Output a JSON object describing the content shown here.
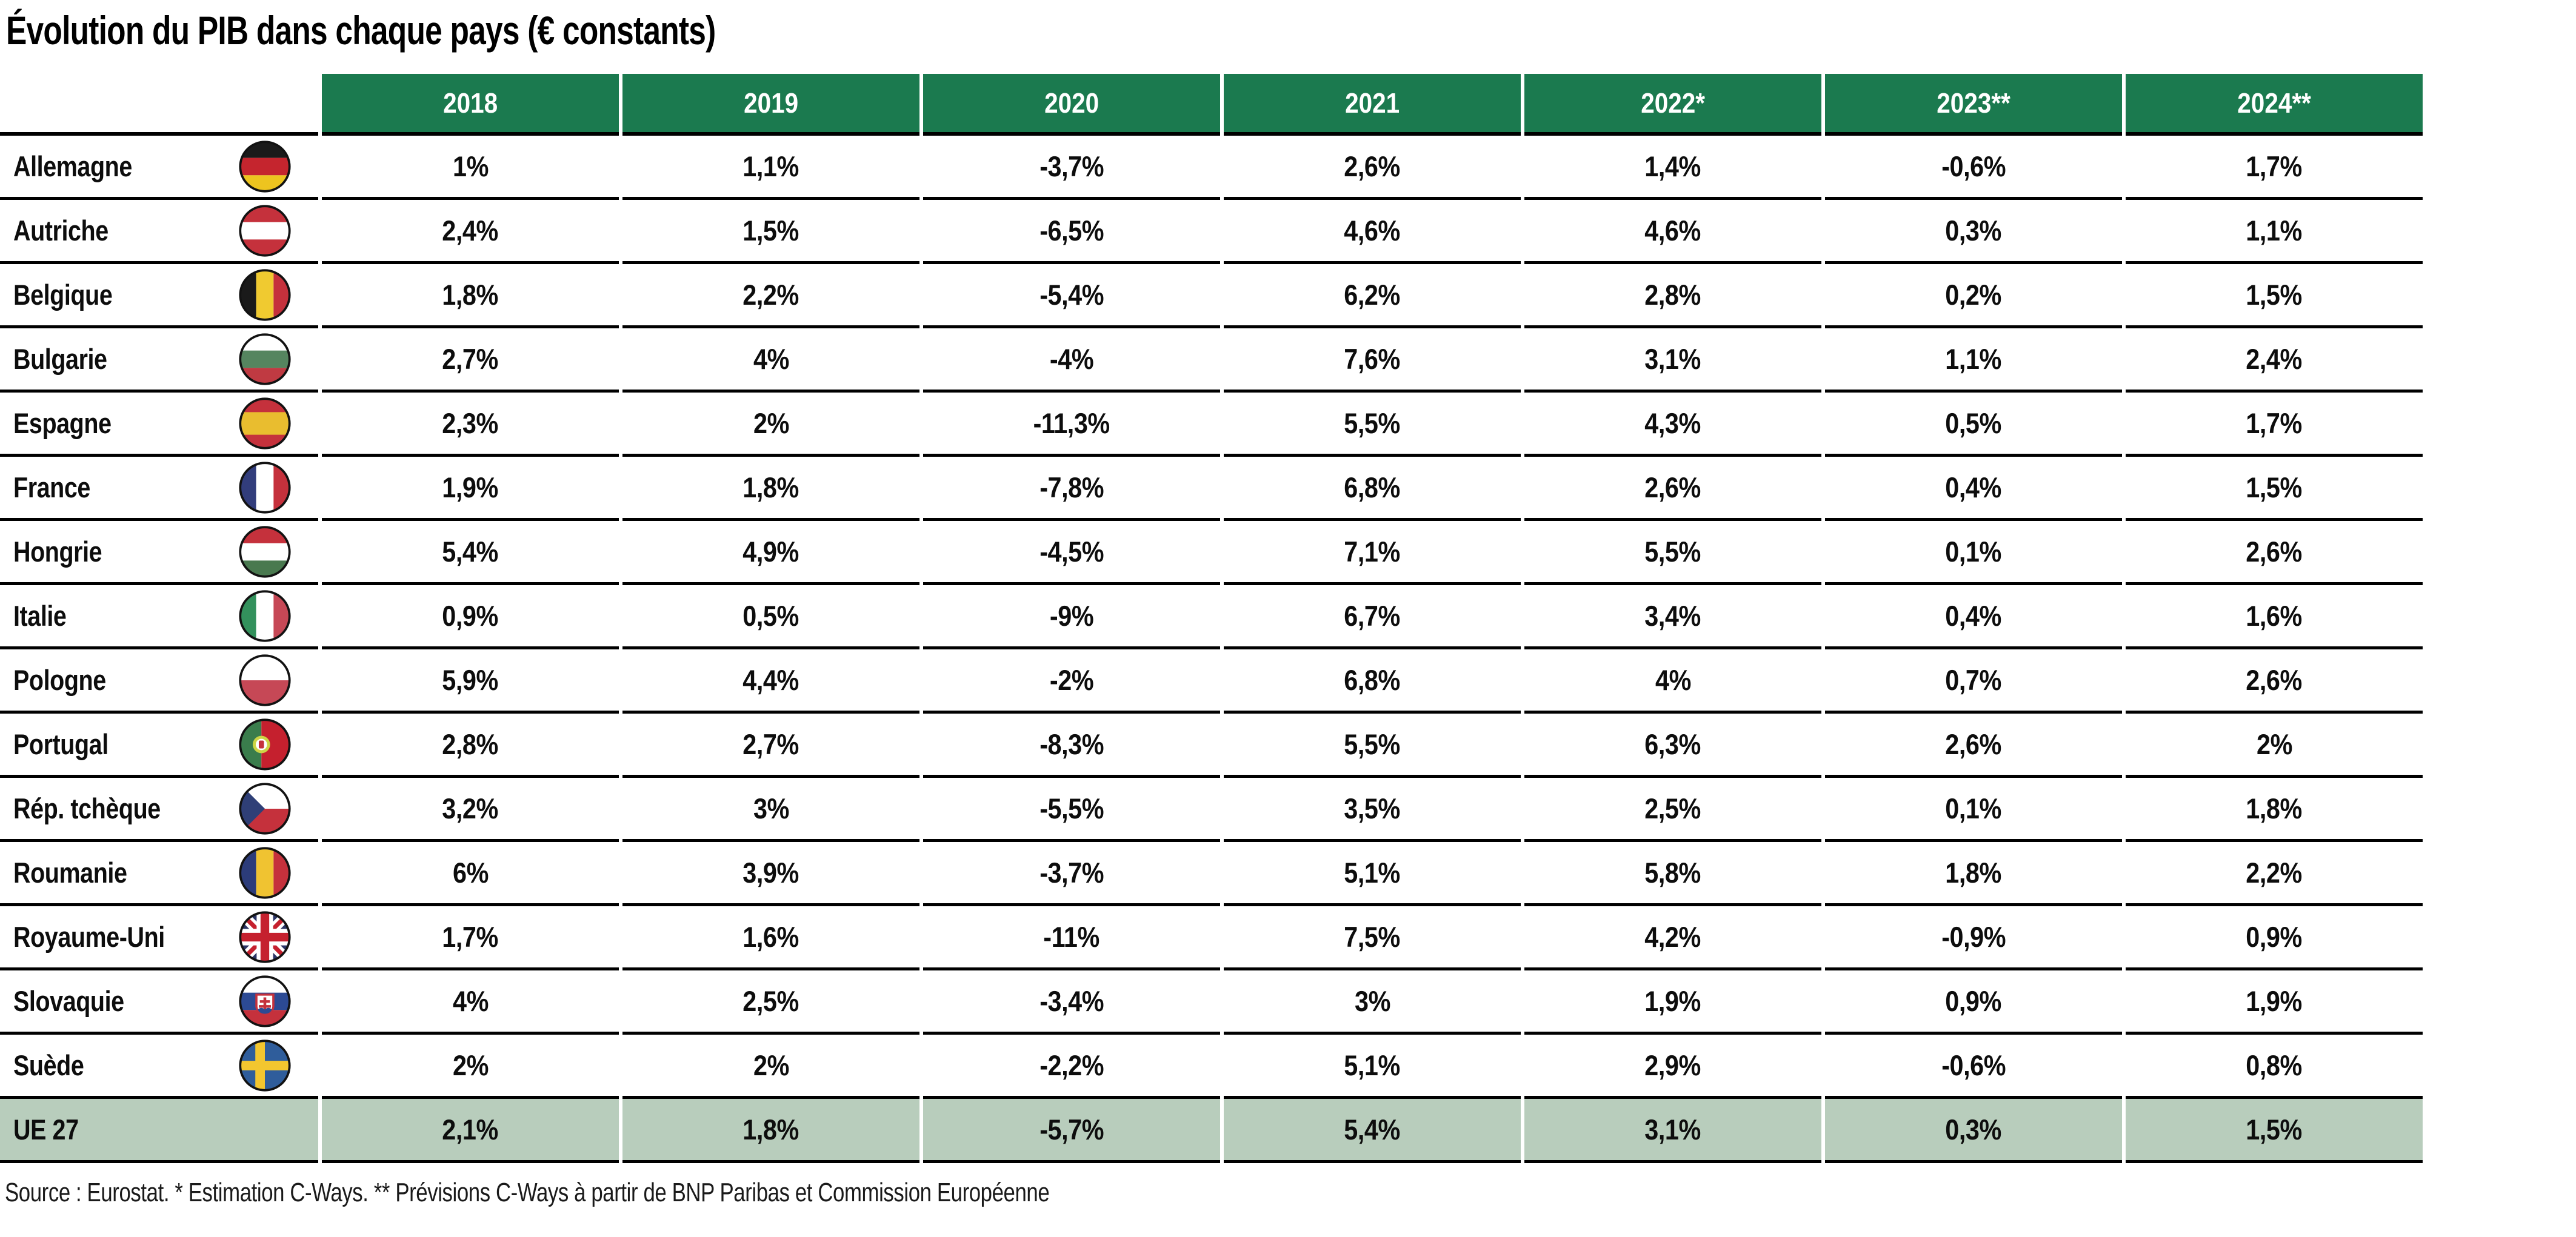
{
  "title": "Évolution du PIB dans chaque pays (€ constants)",
  "table": {
    "year_headers": [
      "2018",
      "2019",
      "2020",
      "2021",
      "2022*",
      "2023**",
      "2024**"
    ],
    "rows": [
      {
        "country": "Allemagne",
        "flag": "flag-germany",
        "code": "de",
        "values": [
          "1%",
          "1,1%",
          "-3,7%",
          "2,6%",
          "1,4%",
          "-0,6%",
          "1,7%"
        ]
      },
      {
        "country": "Autriche",
        "flag": "flag-austria",
        "code": "at",
        "values": [
          "2,4%",
          "1,5%",
          "-6,5%",
          "4,6%",
          "4,6%",
          "0,3%",
          "1,1%"
        ]
      },
      {
        "country": "Belgique",
        "flag": "flag-belgium",
        "code": "be",
        "values": [
          "1,8%",
          "2,2%",
          "-5,4%",
          "6,2%",
          "2,8%",
          "0,2%",
          "1,5%"
        ]
      },
      {
        "country": "Bulgarie",
        "flag": "flag-bulgaria",
        "code": "bg",
        "values": [
          "2,7%",
          "4%",
          "-4%",
          "7,6%",
          "3,1%",
          "1,1%",
          "2,4%"
        ]
      },
      {
        "country": "Espagne",
        "flag": "flag-spain",
        "code": "es",
        "values": [
          "2,3%",
          "2%",
          "-11,3%",
          "5,5%",
          "4,3%",
          "0,5%",
          "1,7%"
        ]
      },
      {
        "country": "France",
        "flag": "flag-france",
        "code": "fr",
        "values": [
          "1,9%",
          "1,8%",
          "-7,8%",
          "6,8%",
          "2,6%",
          "0,4%",
          "1,5%"
        ]
      },
      {
        "country": "Hongrie",
        "flag": "flag-hungary",
        "code": "hu",
        "values": [
          "5,4%",
          "4,9%",
          "-4,5%",
          "7,1%",
          "5,5%",
          "0,1%",
          "2,6%"
        ]
      },
      {
        "country": "Italie",
        "flag": "flag-italy",
        "code": "it",
        "values": [
          "0,9%",
          "0,5%",
          "-9%",
          "6,7%",
          "3,4%",
          "0,4%",
          "1,6%"
        ]
      },
      {
        "country": "Pologne",
        "flag": "flag-poland",
        "code": "pl",
        "values": [
          "5,9%",
          "4,4%",
          "-2%",
          "6,8%",
          "4%",
          "0,7%",
          "2,6%"
        ]
      },
      {
        "country": "Portugal",
        "flag": "flag-portugal",
        "code": "pt",
        "values": [
          "2,8%",
          "2,7%",
          "-8,3%",
          "5,5%",
          "6,3%",
          "2,6%",
          "2%"
        ]
      },
      {
        "country": "Rép. tchèque",
        "flag": "flag-czech-republic",
        "code": "cz",
        "values": [
          "3,2%",
          "3%",
          "-5,5%",
          "3,5%",
          "2,5%",
          "0,1%",
          "1,8%"
        ]
      },
      {
        "country": "Roumanie",
        "flag": "flag-romania",
        "code": "ro",
        "values": [
          "6%",
          "3,9%",
          "-3,7%",
          "5,1%",
          "5,8%",
          "1,8%",
          "2,2%"
        ]
      },
      {
        "country": "Royaume-Uni",
        "flag": "flag-united-kingdom",
        "code": "uk",
        "values": [
          "1,7%",
          "1,6%",
          "-11%",
          "7,5%",
          "4,2%",
          "-0,9%",
          "0,9%"
        ]
      },
      {
        "country": "Slovaquie",
        "flag": "flag-slovakia",
        "code": "sk",
        "values": [
          "4%",
          "2,5%",
          "-3,4%",
          "3%",
          "1,9%",
          "0,9%",
          "1,9%"
        ]
      },
      {
        "country": "Suède",
        "flag": "flag-sweden",
        "code": "se",
        "values": [
          "2%",
          "2%",
          "-2,2%",
          "5,1%",
          "2,9%",
          "-0,6%",
          "0,8%"
        ]
      },
      {
        "country": "UE 27",
        "flag": null,
        "code": null,
        "values": [
          "2,1%",
          "1,8%",
          "-5,7%",
          "5,4%",
          "3,1%",
          "0,3%",
          "1,5%"
        ],
        "highlight": true
      }
    ]
  },
  "footer": "Source : Eurostat. * Estimation C-Ways. ** Prévisions C-Ways à partir de BNP Paribas et Commission Européenne",
  "colors": {
    "header_bg": "#1b7a4f",
    "header_text": "#ffffff",
    "highlight_bg": "#b8cdbc",
    "row_line": "#000000",
    "text": "#0d0d0d"
  }
}
